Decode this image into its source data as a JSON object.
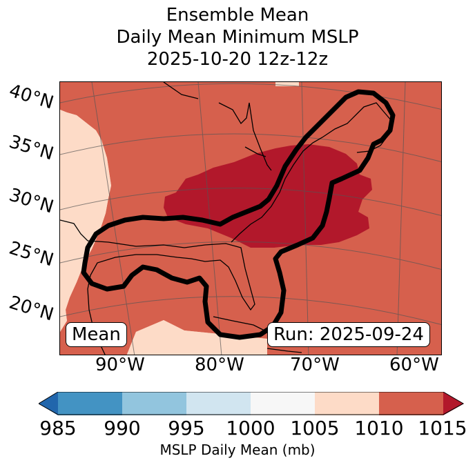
{
  "title": {
    "line1": "Ensemble Mean",
    "line2": "Daily Mean Minimum MSLP",
    "line3": "2025-10-20 12z-12z"
  },
  "map": {
    "latitude_labels": [
      "40°N",
      "35°N",
      "30°N",
      "25°N",
      "20°N"
    ],
    "longitude_labels": [
      "90°W",
      "80°W",
      "70°W",
      "60°W"
    ],
    "mean_box_label": "Mean",
    "run_box_label": "Run: 2025-09-24"
  },
  "colorbar": {
    "label": "MSLP Daily Mean (mb)",
    "ticks": [
      "985",
      "990",
      "995",
      "1000",
      "1005",
      "1010",
      "1015"
    ],
    "colors": {
      "below_985": "#2166ac",
      "985_990": "#4393c3",
      "990_995": "#92c5de",
      "995_1000": "#d1e5f0",
      "1000_1005": "#f7f7f7",
      "1005_1010": "#fddbc7",
      "1010_1015": "#d6604d",
      "above_1015": "#b2182b"
    }
  },
  "chart_data": {
    "type": "heatmap",
    "title": "Ensemble Mean Daily Mean Minimum MSLP 2025-10-20 12z-12z",
    "xlabel": "",
    "ylabel": "",
    "colorbar_label": "MSLP Daily Mean (mb)",
    "levels": [
      985,
      990,
      995,
      1000,
      1005,
      1010,
      1015
    ]
  }
}
